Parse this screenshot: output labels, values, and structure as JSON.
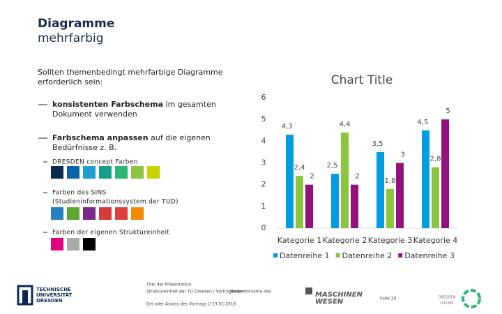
{
  "header": {
    "title": "Diagramme",
    "subtitle": "mehrfarbig"
  },
  "body": {
    "intro": [
      "Sollten themenbedingt mehrfarbige Diagramme",
      "erforderlich sein:"
    ],
    "bullets": [
      {
        "bold": "konsistenten Farbschema",
        "rest": "im gesamten",
        "line2": "Dokument verwenden"
      },
      {
        "bold": "Farbschema anpassen",
        "rest": "auf die eigenen",
        "line2": "Bedürfnisse z. B."
      }
    ],
    "palettes": [
      {
        "label": [
          "DRESDEN concept Farben"
        ],
        "colors": [
          "#0b2a51",
          "#0a63a6",
          "#1e9fd0",
          "#16a08a",
          "#2bb673",
          "#8cc63f",
          "#c8d400"
        ]
      },
      {
        "label": [
          "Farben des SINS",
          "(Studieninformationssystem der TUD)"
        ],
        "colors": [
          "#2a7fc1",
          "#5aa832",
          "#7b2a8a",
          "#d93a3a",
          "#e0403a",
          "#f08a00"
        ]
      },
      {
        "label": [
          "Farben der eigenen Struktureinheit"
        ],
        "colors": [
          "#e5007d",
          "#aaaaaa",
          "#000000"
        ]
      }
    ]
  },
  "chart_data": {
    "type": "bar",
    "title": "Chart Title",
    "categories": [
      "Kategorie 1",
      "Kategorie 2",
      "Kategorie 3",
      "Kategorie 4"
    ],
    "series": [
      {
        "name": "Datenreihe 1",
        "color": "#009de0",
        "values": [
          4.3,
          2.5,
          3.5,
          4.5
        ],
        "value_labels": [
          "4,3",
          "2,5",
          "3,5",
          "4,5"
        ]
      },
      {
        "name": "Datenreihe 2",
        "color": "#8cc63f",
        "values": [
          2.4,
          4.4,
          1.8,
          2.8
        ],
        "value_labels": [
          "2,4",
          "4,4",
          "1,8",
          "2,8"
        ]
      },
      {
        "name": "Datenreihe 3",
        "color": "#93107d",
        "values": [
          2,
          2,
          3,
          5
        ]
      }
    ],
    "ylim": [
      0,
      6
    ],
    "yticks": [
      0,
      1,
      2,
      3,
      4,
      5,
      6
    ],
    "grid": false,
    "legend": "bottom"
  },
  "footer": {
    "lines": [
      "Titel der Präsentation",
      "Struktureinheit der TU Dresden / Vortragenden",
      "Ort oder Anlass des Vortrags // 13.01.2018"
    ],
    "name": "Name Vorname des",
    "page": "Folie 20",
    "tud": [
      "TECHNISCHE",
      "UNIVERSITÄT",
      "DRESDEN"
    ],
    "fs": [
      "MASCHINEN",
      "WESEN"
    ],
    "concept": [
      "DRESDEN",
      "concept"
    ]
  }
}
